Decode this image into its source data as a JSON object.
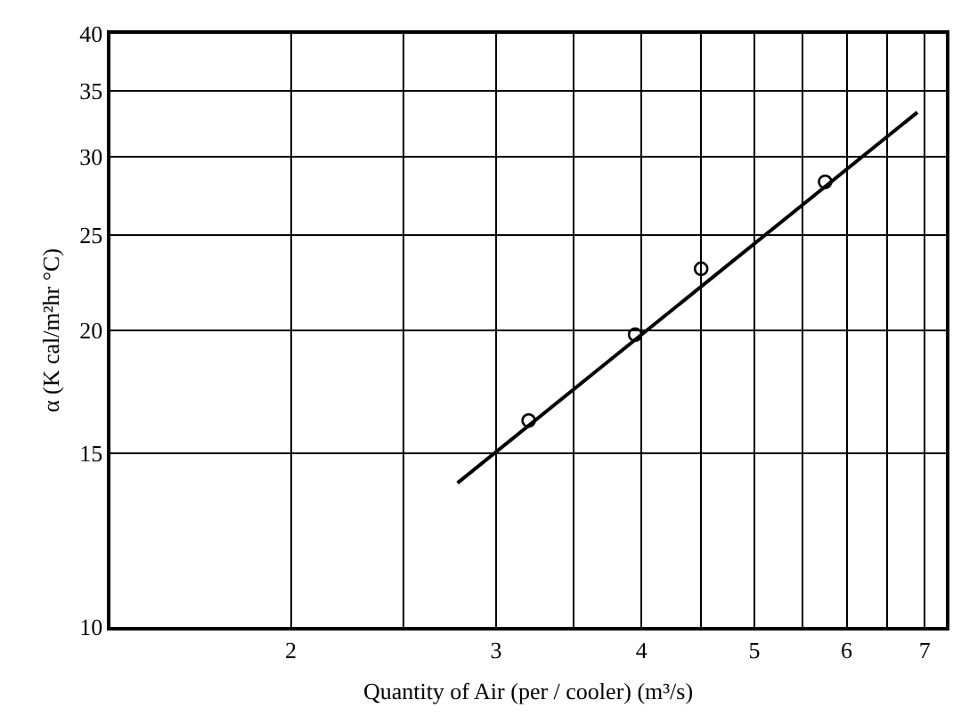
{
  "chart_data": {
    "type": "scatter",
    "xlabel": "Quantity of Air (per / cooler) (m³/s)",
    "ylabel": "α (K cal/m²hr °C)",
    "log": "xy",
    "grid": true,
    "xlim": [
      1.4,
      7.3
    ],
    "xticks": [
      2,
      {
        "value": 2.5,
        "label": null
      },
      3,
      {
        "value": 3.5,
        "label": null
      },
      4,
      {
        "value": 4.5,
        "label": null
      },
      5,
      {
        "value": 5.5,
        "label": null
      },
      6,
      {
        "value": 6.5,
        "label": null
      },
      7
    ],
    "ylim": [
      10,
      40
    ],
    "yticks": [
      10,
      15,
      20,
      25,
      30,
      35,
      40
    ],
    "series": [
      {
        "type": "scatter",
        "marker": "circle",
        "color": "#000000",
        "x": [
          3.2,
          3.95,
          4.5,
          5.75
        ],
        "values": [
          16.2,
          19.8,
          23.1,
          28.3
        ]
      },
      {
        "type": "line",
        "marker": "none",
        "line_style": "solid",
        "color": "#000000",
        "x": [
          2.78,
          6.9
        ],
        "values": [
          14.0,
          33.3
        ]
      }
    ]
  }
}
